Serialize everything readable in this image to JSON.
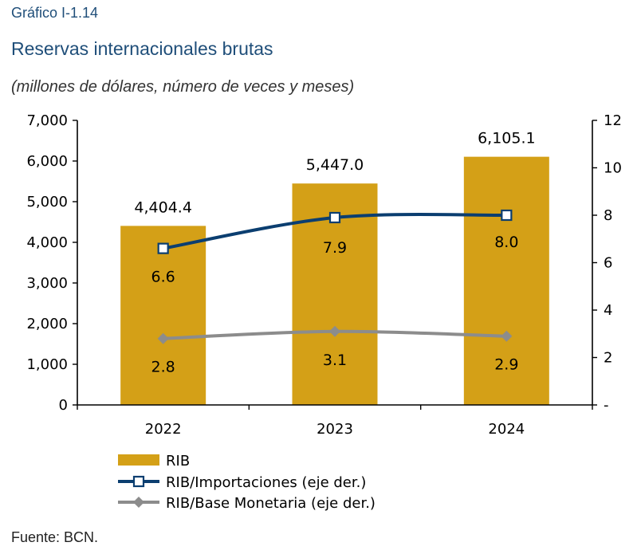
{
  "figure": {
    "label": "Gráfico I-1.14",
    "title": "Reservas internacionales brutas",
    "subtitle": "(millones de dólares, número de veces y meses)",
    "source": "Fuente: BCN."
  },
  "colors": {
    "bar": "#d4a017",
    "importaciones": "#0b3e70",
    "base_monetaria": "#8c8c8c"
  },
  "chart_data": {
    "type": "bar",
    "categories": [
      "2022",
      "2023",
      "2024"
    ],
    "series": [
      {
        "name": "RIB",
        "type": "bar",
        "axis": "left",
        "values": [
          4404.4,
          5447.0,
          6105.1
        ],
        "labels": [
          "4,404.4",
          "5,447.0",
          "6,105.1"
        ]
      },
      {
        "name": "RIB/Importaciones (eje der.)",
        "type": "line",
        "axis": "right",
        "marker": "square",
        "values": [
          6.6,
          7.9,
          8.0
        ],
        "labels": [
          "6.6",
          "7.9",
          "8.0"
        ]
      },
      {
        "name": "RIB/Base Monetaria (eje der.)",
        "type": "line",
        "axis": "right",
        "marker": "diamond",
        "values": [
          2.8,
          3.1,
          2.9
        ],
        "labels": [
          "2.8",
          "3.1",
          "2.9"
        ]
      }
    ],
    "y_left": {
      "ylim": [
        0,
        7000
      ],
      "ticks": [
        0,
        1000,
        2000,
        3000,
        4000,
        5000,
        6000,
        7000
      ],
      "tick_labels": [
        "0",
        "1,000",
        "2,000",
        "3,000",
        "4,000",
        "5,000",
        "6,000",
        "7,000"
      ]
    },
    "y_right": {
      "ylim": [
        0,
        12
      ],
      "ticks": [
        0,
        2,
        4,
        6,
        8,
        10,
        12
      ],
      "tick_labels": [
        "-",
        "2",
        "4",
        "6",
        "8",
        "10",
        "12"
      ]
    },
    "grid": false,
    "legend_position": "bottom"
  }
}
